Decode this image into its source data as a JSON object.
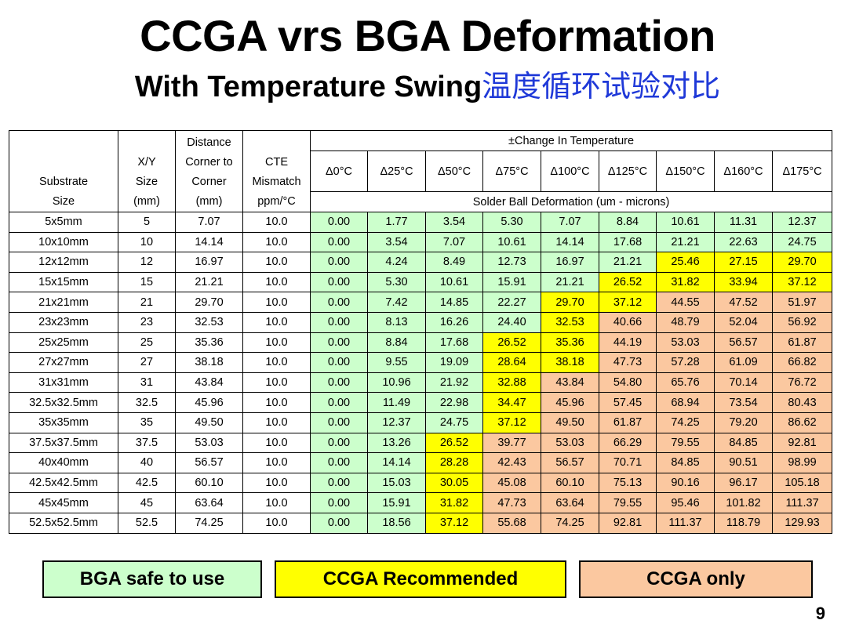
{
  "title": "CCGA vrs BGA Deformation",
  "subtitle_en": "With Temperature Swing",
  "subtitle_cn": "温度循环试验对比",
  "headers": {
    "substrate": [
      "Substrate",
      "Size"
    ],
    "xy": [
      "X/Y",
      "Size",
      "(mm)"
    ],
    "distance": [
      "Distance",
      "Corner to",
      "Corner",
      "(mm)"
    ],
    "cte": [
      "CTE",
      "Mismatch",
      "ppm/°C"
    ],
    "change": "±Change In Temperature",
    "deltas": [
      "Δ0°C",
      "Δ25°C",
      "Δ50°C",
      "Δ75°C",
      "Δ100°C",
      "Δ125°C",
      "Δ150°C",
      "Δ160°C",
      "Δ175°C"
    ],
    "deformation": "Solder Ball Deformation (um - microns)"
  },
  "rows": [
    {
      "substrate": "5x5mm",
      "xy": "5",
      "dist": "7.07",
      "cte": "10.0",
      "vals": [
        "0.00",
        "1.77",
        "3.54",
        "5.30",
        "7.07",
        "8.84",
        "10.61",
        "11.31",
        "12.37"
      ],
      "cls": "ggggggggg"
    },
    {
      "substrate": "10x10mm",
      "xy": "10",
      "dist": "14.14",
      "cte": "10.0",
      "vals": [
        "0.00",
        "3.54",
        "7.07",
        "10.61",
        "14.14",
        "17.68",
        "21.21",
        "22.63",
        "24.75"
      ],
      "cls": "ggggggggg"
    },
    {
      "substrate": "12x12mm",
      "xy": "12",
      "dist": "16.97",
      "cte": "10.0",
      "vals": [
        "0.00",
        "4.24",
        "8.49",
        "12.73",
        "16.97",
        "21.21",
        "25.46",
        "27.15",
        "29.70"
      ],
      "cls": "ggggggyyy"
    },
    {
      "substrate": "15x15mm",
      "xy": "15",
      "dist": "21.21",
      "cte": "10.0",
      "vals": [
        "0.00",
        "5.30",
        "10.61",
        "15.91",
        "21.21",
        "26.52",
        "31.82",
        "33.94",
        "37.12"
      ],
      "cls": "gggggyyyy"
    },
    {
      "substrate": "21x21mm",
      "xy": "21",
      "dist": "29.70",
      "cte": "10.0",
      "vals": [
        "0.00",
        "7.42",
        "14.85",
        "22.27",
        "29.70",
        "37.12",
        "44.55",
        "47.52",
        "51.97"
      ],
      "cls": "ggggyyooo"
    },
    {
      "substrate": "23x23mm",
      "xy": "23",
      "dist": "32.53",
      "cte": "10.0",
      "vals": [
        "0.00",
        "8.13",
        "16.26",
        "24.40",
        "32.53",
        "40.66",
        "48.79",
        "52.04",
        "56.92"
      ],
      "cls": "ggggyoooo"
    },
    {
      "substrate": "25x25mm",
      "xy": "25",
      "dist": "35.36",
      "cte": "10.0",
      "vals": [
        "0.00",
        "8.84",
        "17.68",
        "26.52",
        "35.36",
        "44.19",
        "53.03",
        "56.57",
        "61.87"
      ],
      "cls": "gggyyoooo"
    },
    {
      "substrate": "27x27mm",
      "xy": "27",
      "dist": "38.18",
      "cte": "10.0",
      "vals": [
        "0.00",
        "9.55",
        "19.09",
        "28.64",
        "38.18",
        "47.73",
        "57.28",
        "61.09",
        "66.82"
      ],
      "cls": "gggyyoooo"
    },
    {
      "substrate": "31x31mm",
      "xy": "31",
      "dist": "43.84",
      "cte": "10.0",
      "vals": [
        "0.00",
        "10.96",
        "21.92",
        "32.88",
        "43.84",
        "54.80",
        "65.76",
        "70.14",
        "76.72"
      ],
      "cls": "gggyooooo"
    },
    {
      "substrate": "32.5x32.5mm",
      "xy": "32.5",
      "dist": "45.96",
      "cte": "10.0",
      "vals": [
        "0.00",
        "11.49",
        "22.98",
        "34.47",
        "45.96",
        "57.45",
        "68.94",
        "73.54",
        "80.43"
      ],
      "cls": "gggyooooo"
    },
    {
      "substrate": "35x35mm",
      "xy": "35",
      "dist": "49.50",
      "cte": "10.0",
      "vals": [
        "0.00",
        "12.37",
        "24.75",
        "37.12",
        "49.50",
        "61.87",
        "74.25",
        "79.20",
        "86.62"
      ],
      "cls": "gggyooooo"
    },
    {
      "substrate": "37.5x37.5mm",
      "xy": "37.5",
      "dist": "53.03",
      "cte": "10.0",
      "vals": [
        "0.00",
        "13.26",
        "26.52",
        "39.77",
        "53.03",
        "66.29",
        "79.55",
        "84.85",
        "92.81"
      ],
      "cls": "ggyoooooo"
    },
    {
      "substrate": "40x40mm",
      "xy": "40",
      "dist": "56.57",
      "cte": "10.0",
      "vals": [
        "0.00",
        "14.14",
        "28.28",
        "42.43",
        "56.57",
        "70.71",
        "84.85",
        "90.51",
        "98.99"
      ],
      "cls": "ggyoooooo"
    },
    {
      "substrate": "42.5x42.5mm",
      "xy": "42.5",
      "dist": "60.10",
      "cte": "10.0",
      "vals": [
        "0.00",
        "15.03",
        "30.05",
        "45.08",
        "60.10",
        "75.13",
        "90.16",
        "96.17",
        "105.18"
      ],
      "cls": "ggyoooooo"
    },
    {
      "substrate": "45x45mm",
      "xy": "45",
      "dist": "63.64",
      "cte": "10.0",
      "vals": [
        "0.00",
        "15.91",
        "31.82",
        "47.73",
        "63.64",
        "79.55",
        "95.46",
        "101.82",
        "111.37"
      ],
      "cls": "ggyoooooo"
    },
    {
      "substrate": "52.5x52.5mm",
      "xy": "52.5",
      "dist": "74.25",
      "cte": "10.0",
      "vals": [
        "0.00",
        "18.56",
        "37.12",
        "55.68",
        "74.25",
        "92.81",
        "111.37",
        "118.79",
        "129.93"
      ],
      "cls": "ggyoooooo"
    }
  ],
  "legend": {
    "green": "BGA safe to use",
    "yellow": "CCGA Recommended",
    "orange": "CCGA only"
  },
  "colors": {
    "green": "#ccffcc",
    "yellow": "#ffff00",
    "orange": "#fbc8a0",
    "cn_text": "#1f39d8"
  },
  "page_number": "9"
}
